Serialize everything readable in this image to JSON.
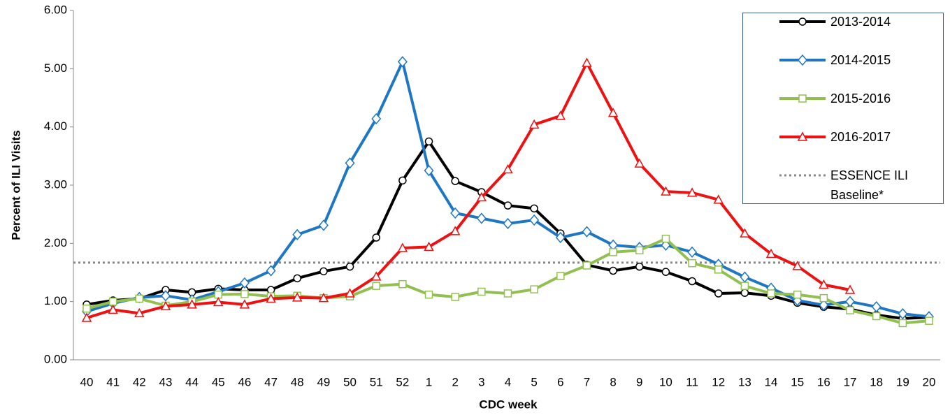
{
  "chart_data": {
    "type": "line",
    "x_label": "CDC week",
    "y_label": "Percent of ILI Visits",
    "categories": [
      "40",
      "41",
      "42",
      "43",
      "44",
      "45",
      "46",
      "47",
      "48",
      "49",
      "50",
      "51",
      "52",
      "1",
      "2",
      "3",
      "4",
      "5",
      "6",
      "7",
      "8",
      "9",
      "10",
      "11",
      "12",
      "13",
      "14",
      "15",
      "16",
      "17",
      "18",
      "19",
      "20"
    ],
    "series": [
      {
        "name": "2013-2014",
        "color": "#000000",
        "marker": "circle",
        "values": [
          0.95,
          1.02,
          1.05,
          1.2,
          1.16,
          1.22,
          1.2,
          1.2,
          1.4,
          1.52,
          1.6,
          2.1,
          3.08,
          3.75,
          3.07,
          2.88,
          2.65,
          2.6,
          2.17,
          1.63,
          1.53,
          1.6,
          1.51,
          1.35,
          1.14,
          1.15,
          1.1,
          0.98,
          0.91,
          0.87,
          0.77,
          0.71,
          0.73
        ]
      },
      {
        "name": "2014-2015",
        "color": "#1f77c4",
        "marker": "diamond",
        "values": [
          0.83,
          0.97,
          1.07,
          1.1,
          1.03,
          1.17,
          1.32,
          1.53,
          2.15,
          2.31,
          3.38,
          4.14,
          5.12,
          3.25,
          2.52,
          2.43,
          2.34,
          2.4,
          2.1,
          2.2,
          1.97,
          1.93,
          1.97,
          1.85,
          1.64,
          1.42,
          1.23,
          1.02,
          0.94,
          1.0,
          0.91,
          0.79,
          0.74
        ]
      },
      {
        "name": "2015-2016",
        "color": "#92c050",
        "marker": "square",
        "values": [
          0.88,
          1.0,
          1.05,
          0.93,
          1.0,
          1.12,
          1.13,
          1.09,
          1.1,
          1.06,
          1.09,
          1.27,
          1.3,
          1.12,
          1.08,
          1.17,
          1.14,
          1.21,
          1.44,
          1.62,
          1.85,
          1.88,
          2.08,
          1.66,
          1.55,
          1.27,
          1.14,
          1.12,
          1.06,
          0.85,
          0.75,
          0.63,
          0.67
        ]
      },
      {
        "name": "2016-2017",
        "color": "#ee1111",
        "marker": "triangle",
        "values": [
          0.72,
          0.86,
          0.8,
          0.92,
          0.95,
          0.99,
          0.95,
          1.05,
          1.07,
          1.06,
          1.14,
          1.43,
          1.92,
          1.94,
          2.21,
          2.79,
          3.27,
          4.04,
          4.19,
          5.1,
          4.24,
          3.37,
          2.89,
          2.87,
          2.75,
          2.17,
          1.82,
          1.61,
          1.29,
          1.2,
          null,
          null,
          null
        ]
      }
    ],
    "baseline": {
      "name": "ESSENCE ILI Baseline*",
      "value": 1.67,
      "color": "#888888"
    },
    "ylim": [
      0,
      6
    ],
    "yticks": [
      {
        "value": 0,
        "label": "0.00"
      },
      {
        "value": 1,
        "label": "1.00"
      },
      {
        "value": 2,
        "label": "2.00"
      },
      {
        "value": 3,
        "label": "3.00"
      },
      {
        "value": 4,
        "label": "4.00"
      },
      {
        "value": 5,
        "label": "5.00"
      },
      {
        "value": 6,
        "label": "6.00"
      }
    ],
    "grid": false,
    "legend": "upper right"
  }
}
